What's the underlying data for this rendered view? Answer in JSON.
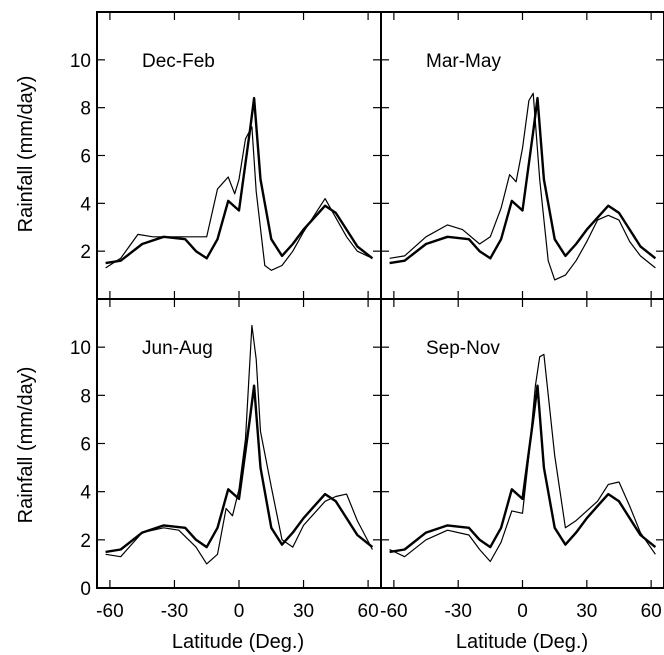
{
  "figure": {
    "ylabel": "Rainfall (mm/day)",
    "xlabel": "Latitude (Deg.)",
    "xticks": [
      -60,
      -30,
      0,
      30,
      60
    ],
    "yticks": [
      0,
      2,
      4,
      6,
      8,
      10
    ],
    "xlim": [
      -66,
      66
    ],
    "ylim": [
      0,
      12
    ]
  },
  "chart_data": [
    {
      "type": "line",
      "title": "Dec-Feb",
      "xlim": [
        -66,
        66
      ],
      "ylim": [
        0,
        12
      ],
      "grid": false,
      "series": [
        {
          "style": "thick",
          "x": [
            -62,
            -55,
            -45,
            -35,
            -25,
            -20,
            -15,
            -10,
            -5,
            0,
            5,
            7,
            10,
            15,
            20,
            25,
            30,
            35,
            40,
            45,
            50,
            55,
            62
          ],
          "y": [
            1.5,
            1.6,
            2.3,
            2.6,
            2.5,
            2.0,
            1.7,
            2.5,
            4.1,
            3.7,
            7.0,
            8.4,
            5.0,
            2.5,
            1.8,
            2.3,
            2.9,
            3.4,
            3.9,
            3.6,
            2.9,
            2.2,
            1.7
          ]
        },
        {
          "style": "thin",
          "x": [
            -62,
            -55,
            -47,
            -40,
            -35,
            -25,
            -15,
            -10,
            -8,
            -5,
            -2,
            0,
            3,
            6,
            8,
            12,
            15,
            20,
            25,
            30,
            35,
            40,
            45,
            50,
            55,
            62
          ],
          "y": [
            1.3,
            1.7,
            2.7,
            2.6,
            2.6,
            2.6,
            2.6,
            4.6,
            4.8,
            5.1,
            4.4,
            5.0,
            6.7,
            7.2,
            4.5,
            1.4,
            1.2,
            1.4,
            2.0,
            2.8,
            3.5,
            4.2,
            3.4,
            2.6,
            2.0,
            1.7
          ]
        }
      ]
    },
    {
      "type": "line",
      "title": "Mar-May",
      "xlim": [
        -66,
        66
      ],
      "ylim": [
        0,
        12
      ],
      "grid": false,
      "series": [
        {
          "style": "thick",
          "x": [
            -62,
            -55,
            -45,
            -35,
            -25,
            -20,
            -15,
            -10,
            -5,
            0,
            5,
            7,
            10,
            15,
            20,
            25,
            30,
            35,
            40,
            45,
            50,
            55,
            62
          ],
          "y": [
            1.5,
            1.6,
            2.3,
            2.6,
            2.5,
            2.0,
            1.7,
            2.5,
            4.1,
            3.7,
            7.0,
            8.4,
            5.0,
            2.5,
            1.8,
            2.3,
            2.9,
            3.4,
            3.9,
            3.6,
            2.9,
            2.2,
            1.7
          ]
        },
        {
          "style": "thin",
          "x": [
            -62,
            -55,
            -45,
            -35,
            -28,
            -20,
            -15,
            -10,
            -6,
            -3,
            0,
            3,
            5,
            8,
            12,
            15,
            20,
            25,
            30,
            35,
            40,
            45,
            50,
            55,
            62
          ],
          "y": [
            1.7,
            1.8,
            2.6,
            3.1,
            2.9,
            2.3,
            2.6,
            3.8,
            5.2,
            4.9,
            6.3,
            8.3,
            8.6,
            5.0,
            1.6,
            0.8,
            1.0,
            1.6,
            2.4,
            3.3,
            3.5,
            3.3,
            2.4,
            1.8,
            1.3
          ]
        }
      ]
    },
    {
      "type": "line",
      "title": "Jun-Aug",
      "xlim": [
        -66,
        66
      ],
      "ylim": [
        0,
        12
      ],
      "grid": false,
      "series": [
        {
          "style": "thick",
          "x": [
            -62,
            -55,
            -45,
            -35,
            -25,
            -20,
            -15,
            -10,
            -5,
            0,
            5,
            7,
            10,
            15,
            20,
            25,
            30,
            35,
            40,
            45,
            50,
            55,
            62
          ],
          "y": [
            1.5,
            1.6,
            2.3,
            2.6,
            2.5,
            2.0,
            1.7,
            2.5,
            4.1,
            3.7,
            7.0,
            8.4,
            5.0,
            2.5,
            1.8,
            2.3,
            2.9,
            3.4,
            3.9,
            3.6,
            2.9,
            2.2,
            1.7
          ]
        },
        {
          "style": "thin",
          "x": [
            -62,
            -55,
            -45,
            -35,
            -28,
            -20,
            -15,
            -10,
            -6,
            -3,
            0,
            3,
            6,
            8,
            10,
            15,
            20,
            25,
            30,
            35,
            40,
            45,
            50,
            55,
            62
          ],
          "y": [
            1.4,
            1.3,
            2.3,
            2.5,
            2.4,
            1.7,
            1.0,
            1.4,
            3.3,
            3.0,
            4.1,
            6.2,
            10.9,
            9.5,
            6.5,
            4.2,
            2.0,
            1.7,
            2.6,
            3.1,
            3.6,
            3.8,
            3.9,
            2.8,
            1.6
          ]
        }
      ]
    },
    {
      "type": "line",
      "title": "Sep-Nov",
      "xlim": [
        -66,
        66
      ],
      "ylim": [
        0,
        12
      ],
      "grid": false,
      "series": [
        {
          "style": "thick",
          "x": [
            -62,
            -55,
            -45,
            -35,
            -25,
            -20,
            -15,
            -10,
            -5,
            0,
            5,
            7,
            10,
            15,
            20,
            25,
            30,
            35,
            40,
            45,
            50,
            55,
            62
          ],
          "y": [
            1.5,
            1.6,
            2.3,
            2.6,
            2.5,
            2.0,
            1.7,
            2.5,
            4.1,
            3.7,
            7.0,
            8.4,
            5.0,
            2.5,
            1.8,
            2.3,
            2.9,
            3.4,
            3.9,
            3.6,
            2.9,
            2.2,
            1.7
          ]
        },
        {
          "style": "thin",
          "x": [
            -62,
            -55,
            -45,
            -35,
            -25,
            -20,
            -15,
            -10,
            -5,
            0,
            3,
            6,
            8,
            10,
            15,
            20,
            25,
            30,
            35,
            40,
            45,
            50,
            55,
            62
          ],
          "y": [
            1.6,
            1.3,
            2.0,
            2.4,
            2.2,
            1.6,
            1.1,
            1.9,
            3.2,
            3.1,
            5.5,
            8.4,
            9.6,
            9.7,
            5.5,
            2.5,
            2.8,
            3.2,
            3.6,
            4.3,
            4.4,
            3.4,
            2.3,
            1.4
          ]
        }
      ]
    }
  ]
}
